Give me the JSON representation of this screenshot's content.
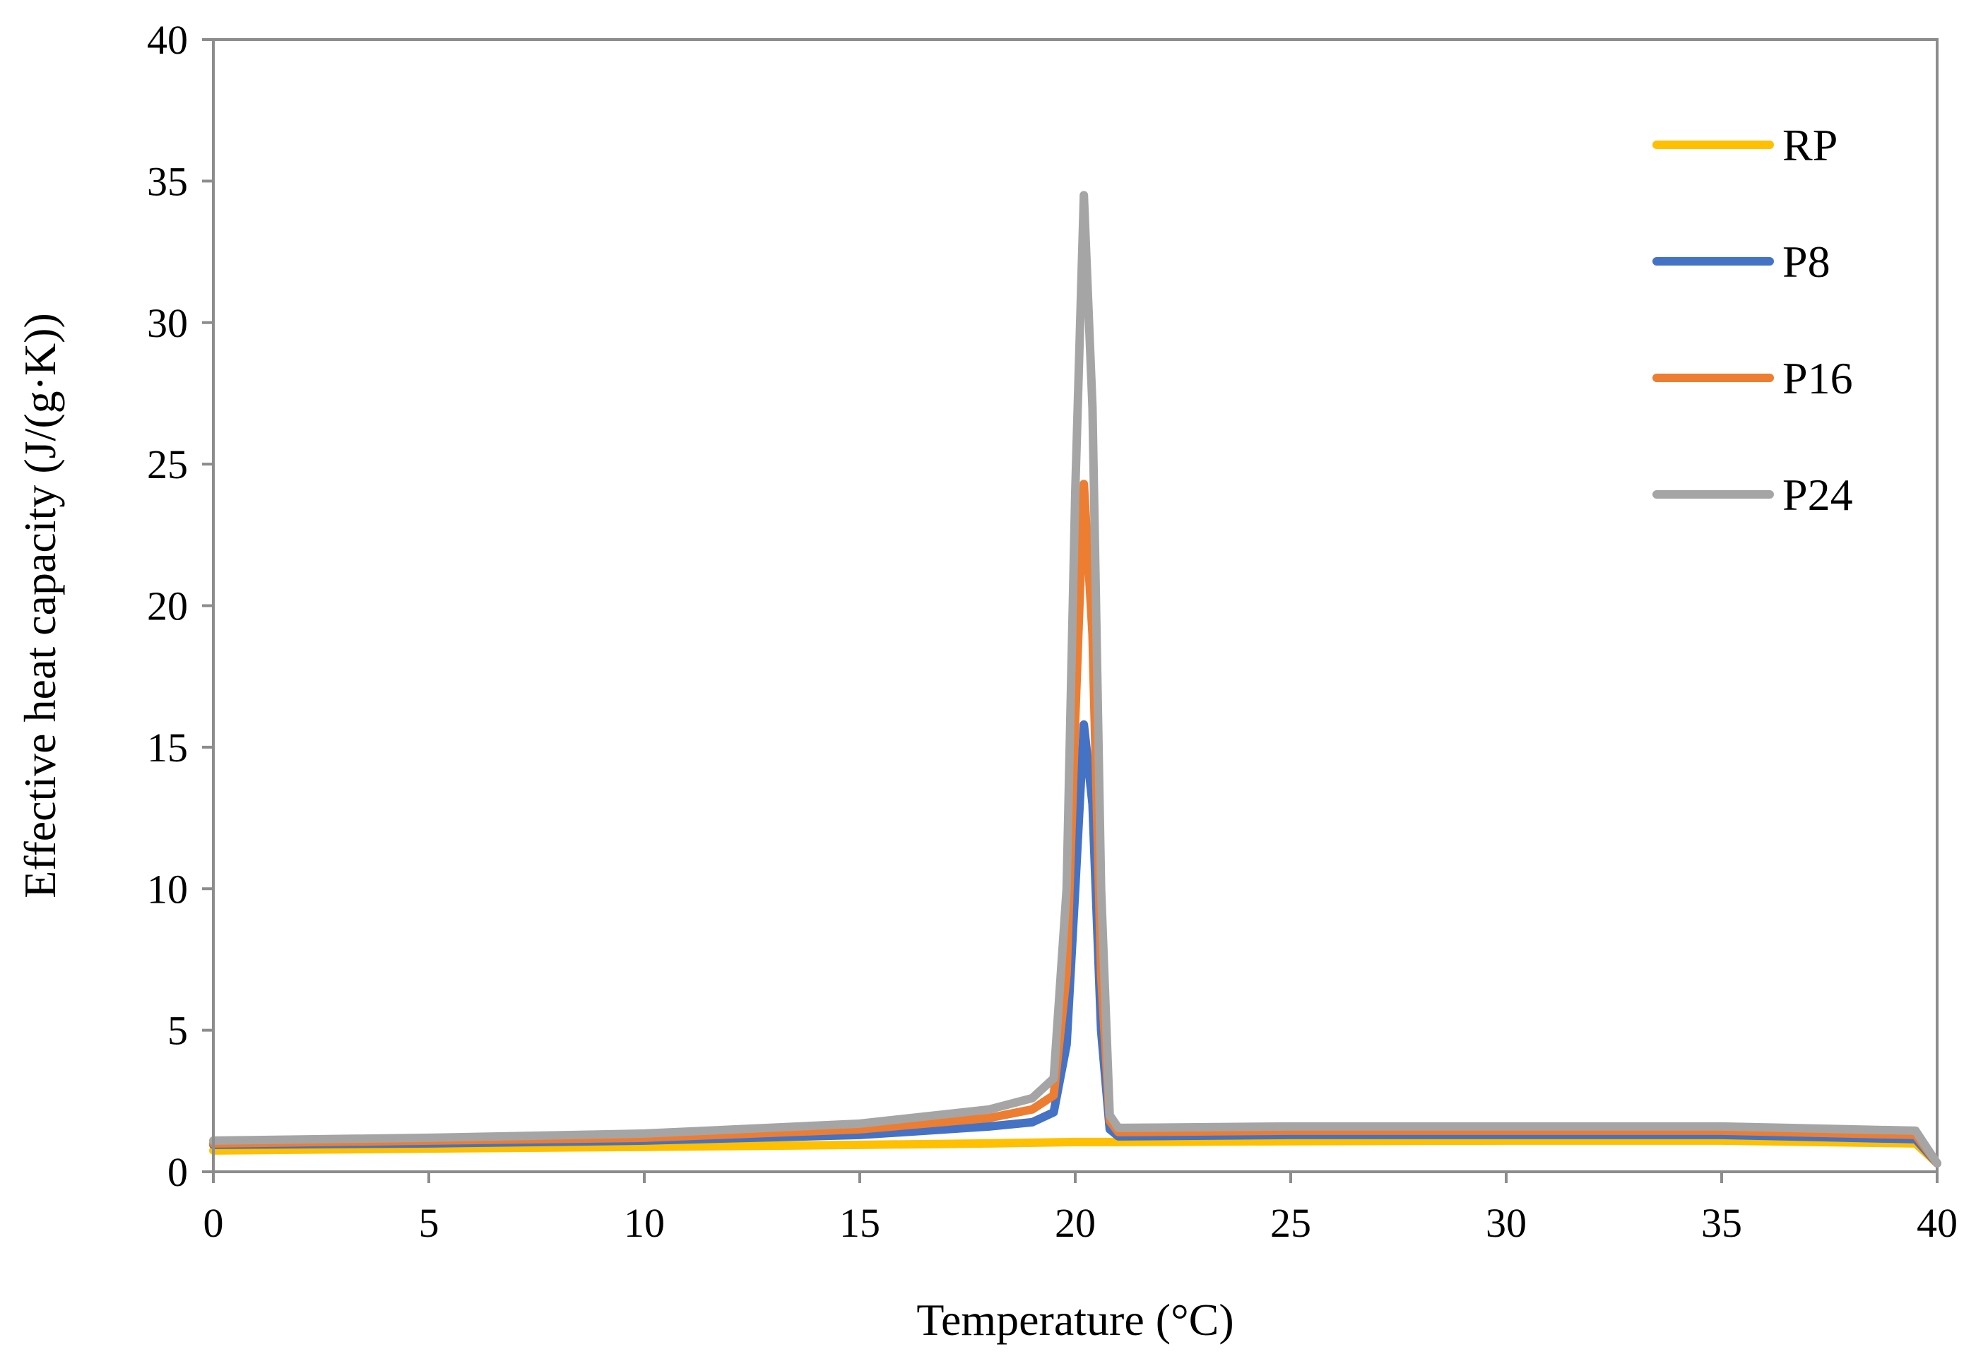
{
  "chart_data": {
    "type": "line",
    "title": "",
    "xlabel": "Temperature (°C)",
    "ylabel": "Effective heat capacity (J/(g·K))",
    "xlim": [
      0,
      40
    ],
    "ylim": [
      0,
      40
    ],
    "xticks": [
      0,
      5,
      10,
      15,
      20,
      25,
      30,
      35,
      40
    ],
    "yticks": [
      0,
      5,
      10,
      15,
      20,
      25,
      30,
      35,
      40
    ],
    "grid": false,
    "legend_position": "top-right",
    "series": [
      {
        "name": "RP",
        "color": "#FFC000",
        "points": [
          [
            0,
            0.75
          ],
          [
            5,
            0.82
          ],
          [
            10,
            0.88
          ],
          [
            15,
            0.95
          ],
          [
            18,
            1.0
          ],
          [
            20,
            1.05
          ],
          [
            21,
            1.05
          ],
          [
            25,
            1.08
          ],
          [
            30,
            1.1
          ],
          [
            35,
            1.1
          ],
          [
            39.5,
            1.0
          ],
          [
            40,
            0.3
          ]
        ]
      },
      {
        "name": "P8",
        "color": "#4472C4",
        "points": [
          [
            0,
            0.95
          ],
          [
            5,
            1.0
          ],
          [
            10,
            1.1
          ],
          [
            15,
            1.3
          ],
          [
            18,
            1.6
          ],
          [
            19,
            1.75
          ],
          [
            19.5,
            2.1
          ],
          [
            19.8,
            4.5
          ],
          [
            20.0,
            10.0
          ],
          [
            20.2,
            15.8
          ],
          [
            20.4,
            13.0
          ],
          [
            20.6,
            5.0
          ],
          [
            20.8,
            1.5
          ],
          [
            21,
            1.25
          ],
          [
            25,
            1.3
          ],
          [
            30,
            1.3
          ],
          [
            35,
            1.3
          ],
          [
            39.5,
            1.15
          ],
          [
            40,
            0.3
          ]
        ]
      },
      {
        "name": "P16",
        "color": "#ED7D31",
        "points": [
          [
            0,
            1.0
          ],
          [
            5,
            1.1
          ],
          [
            10,
            1.2
          ],
          [
            15,
            1.5
          ],
          [
            18,
            1.9
          ],
          [
            19,
            2.2
          ],
          [
            19.5,
            2.7
          ],
          [
            19.8,
            7.0
          ],
          [
            20.0,
            16.0
          ],
          [
            20.2,
            24.3
          ],
          [
            20.4,
            19.0
          ],
          [
            20.6,
            7.0
          ],
          [
            20.8,
            1.8
          ],
          [
            21,
            1.4
          ],
          [
            25,
            1.45
          ],
          [
            30,
            1.45
          ],
          [
            35,
            1.45
          ],
          [
            39.5,
            1.3
          ],
          [
            40,
            0.3
          ]
        ]
      },
      {
        "name": "P24",
        "color": "#A5A5A5",
        "points": [
          [
            0,
            1.1
          ],
          [
            5,
            1.2
          ],
          [
            10,
            1.35
          ],
          [
            15,
            1.7
          ],
          [
            18,
            2.2
          ],
          [
            19,
            2.6
          ],
          [
            19.5,
            3.3
          ],
          [
            19.8,
            10.0
          ],
          [
            20.0,
            24.0
          ],
          [
            20.2,
            34.5
          ],
          [
            20.4,
            27.0
          ],
          [
            20.6,
            10.0
          ],
          [
            20.8,
            2.0
          ],
          [
            21,
            1.55
          ],
          [
            25,
            1.6
          ],
          [
            30,
            1.6
          ],
          [
            35,
            1.6
          ],
          [
            39.5,
            1.45
          ],
          [
            40,
            0.3
          ]
        ]
      }
    ]
  }
}
